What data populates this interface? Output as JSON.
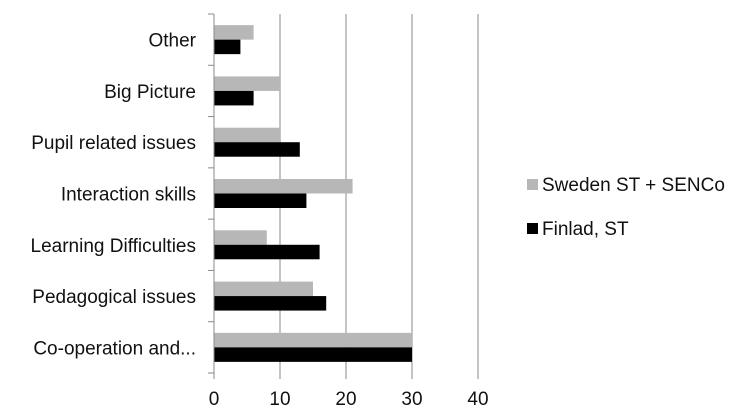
{
  "chart_data": {
    "type": "bar",
    "orientation": "horizontal",
    "categories": [
      "Co-operation and...",
      "Pedagogical issues",
      "Learning Difficulties",
      "Interaction skills",
      "Pupil related issues",
      "Big Picture",
      "Other"
    ],
    "series": [
      {
        "name": "Sweden ST + SENCo",
        "color": "#b7b7b7",
        "values": [
          30,
          15,
          8,
          21,
          10,
          10,
          6
        ]
      },
      {
        "name": "Finlad, ST",
        "color": "#000000",
        "values": [
          30,
          17,
          16,
          14,
          13,
          6,
          4
        ]
      }
    ],
    "xlim": [
      0,
      40
    ],
    "xticks": [
      "0",
      "10",
      "20",
      "30",
      "40"
    ],
    "grid": "vertical",
    "legend": "right"
  }
}
